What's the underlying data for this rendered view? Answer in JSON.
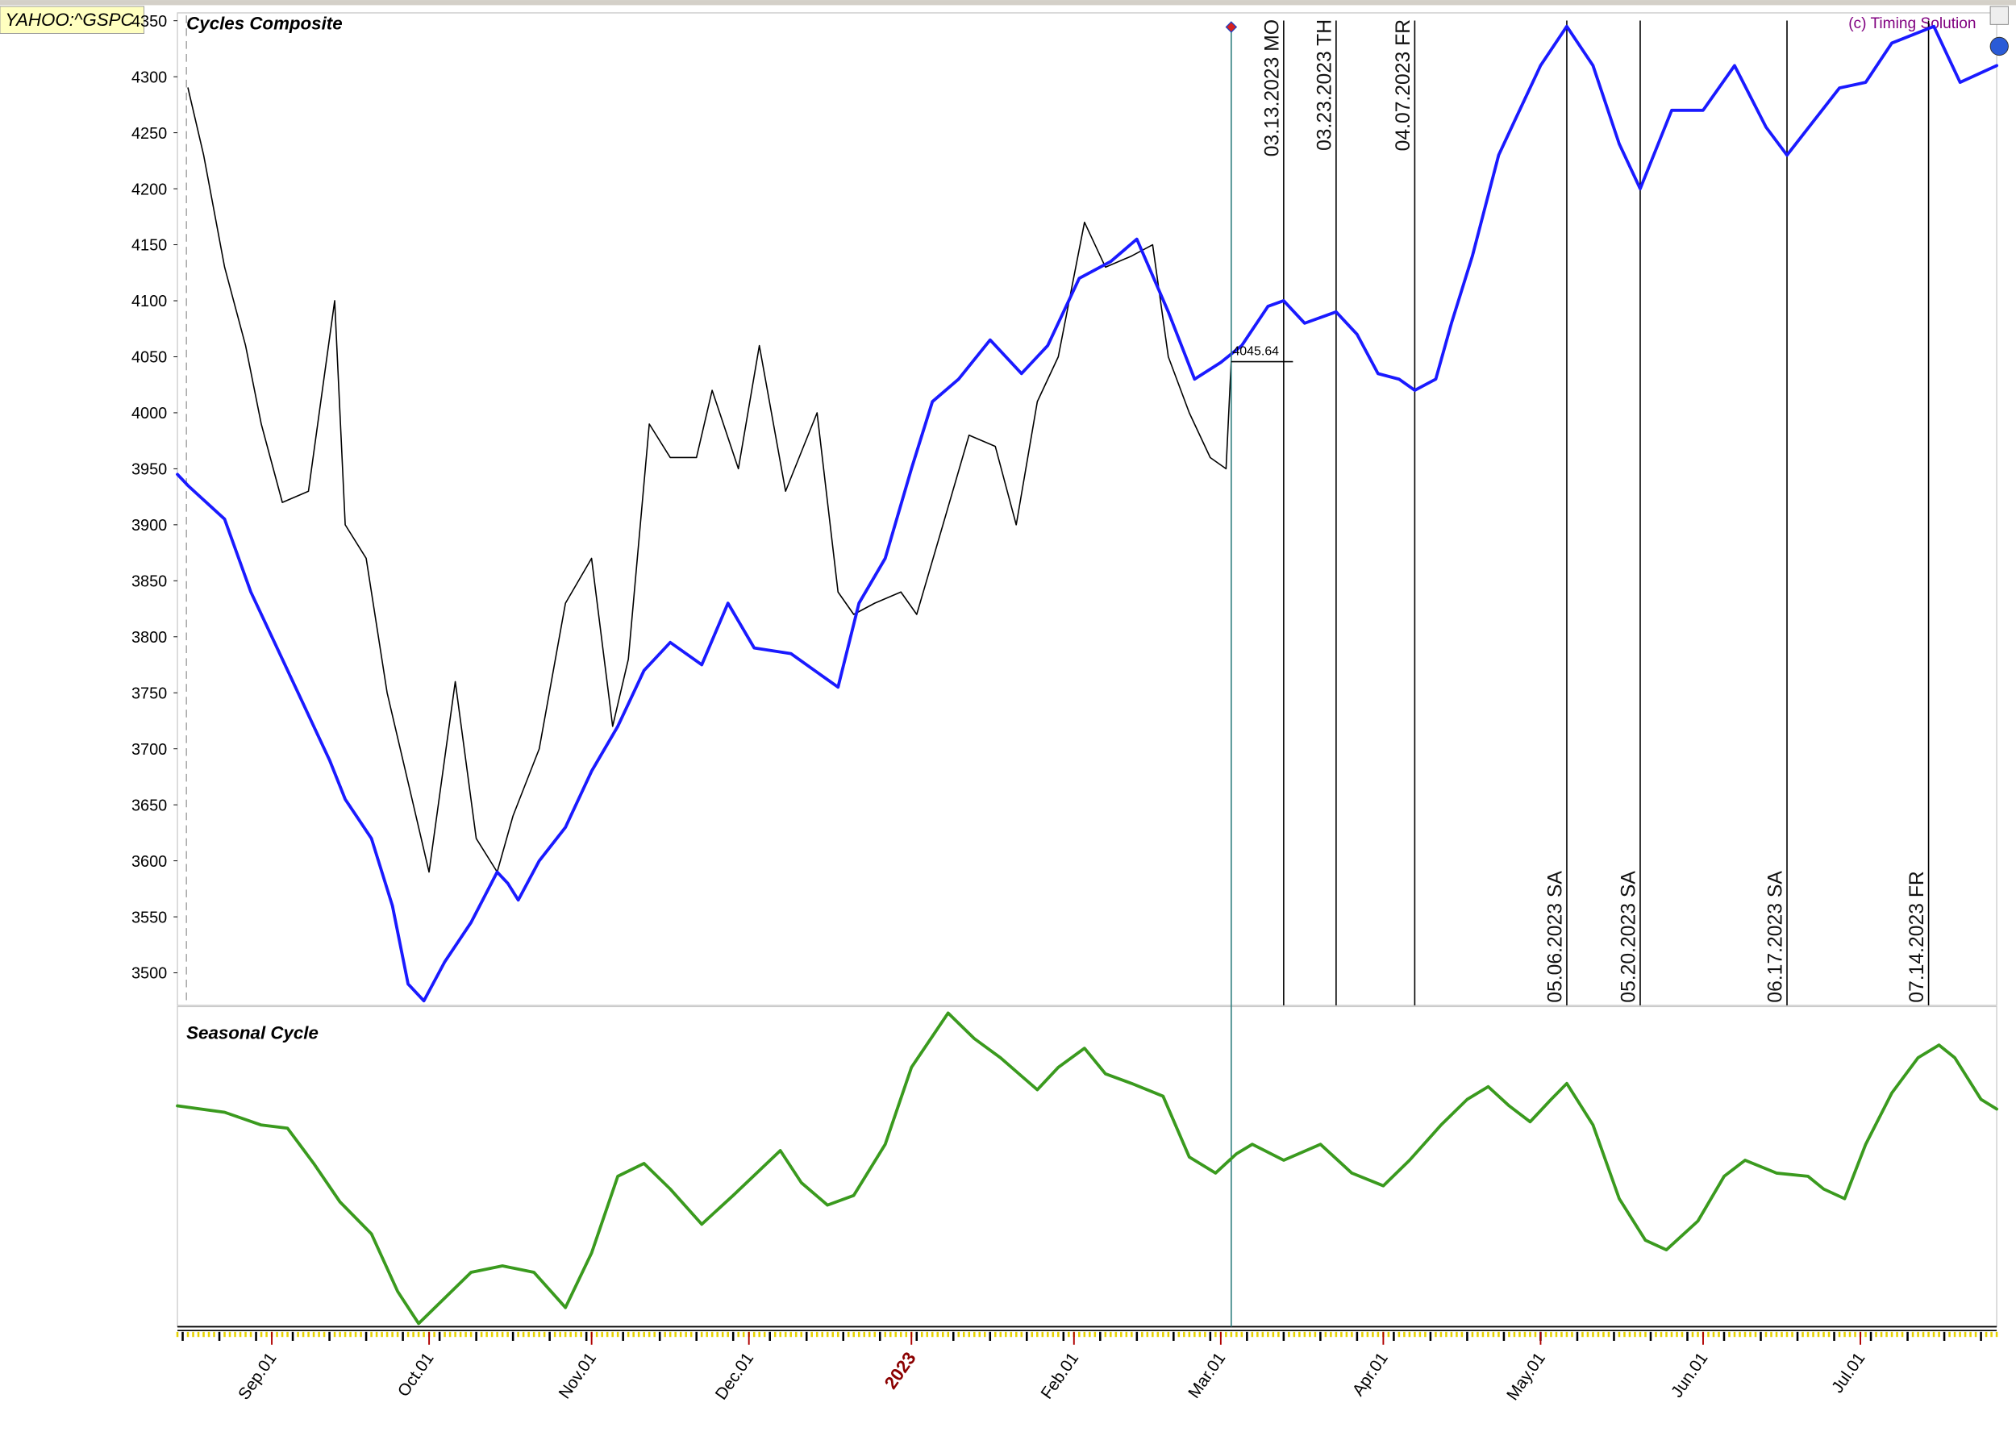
{
  "symbol": "YAHOO:^GSPC",
  "copyright": "(c) Timing Solution",
  "chart_data": [
    {
      "type": "line",
      "title": "Cycles Composite",
      "xlim": [
        "2022-08-14",
        "2023-07-27"
      ],
      "ylim": [
        3471,
        4357
      ],
      "yticks": [
        3500,
        3550,
        3600,
        3650,
        3700,
        3750,
        3800,
        3850,
        3900,
        3950,
        4000,
        4050,
        4100,
        4150,
        4200,
        4250,
        4300,
        4350
      ],
      "series": [
        {
          "color": "#000000",
          "x": [
            "2022-08-16",
            "2022-08-19",
            "2022-08-23",
            "2022-08-27",
            "2022-08-30",
            "2022-09-03",
            "2022-09-08",
            "2022-09-13",
            "2022-09-15",
            "2022-09-19",
            "2022-09-23",
            "2022-09-28",
            "2022-10-01",
            "2022-10-06",
            "2022-10-10",
            "2022-10-14",
            "2022-10-17",
            "2022-10-22",
            "2022-10-27",
            "2022-11-01",
            "2022-11-05",
            "2022-11-08",
            "2022-11-12",
            "2022-11-16",
            "2022-11-21",
            "2022-11-24",
            "2022-11-29",
            "2022-12-03",
            "2022-12-08",
            "2022-12-14",
            "2022-12-18",
            "2022-12-21",
            "2022-12-25",
            "2022-12-30",
            "2023-01-02",
            "2023-01-07",
            "2023-01-12",
            "2023-01-17",
            "2023-01-21",
            "2023-01-25",
            "2023-01-29",
            "2023-02-03",
            "2023-02-07",
            "2023-02-12",
            "2023-02-16",
            "2023-02-19",
            "2023-02-23",
            "2023-02-27",
            "2023-03-02",
            "2023-03-03"
          ],
          "values": [
            4290,
            4230,
            4130,
            4060,
            3990,
            3920,
            3930,
            4100,
            3900,
            3870,
            3750,
            3650,
            3590,
            3760,
            3620,
            3590,
            3640,
            3700,
            3830,
            3870,
            3720,
            3780,
            3990,
            3960,
            3960,
            4020,
            3950,
            4060,
            3930,
            4000,
            3840,
            3820,
            3830,
            3840,
            3820,
            3900,
            3980,
            3970,
            3900,
            4010,
            4050,
            4170,
            4130,
            4140,
            4150,
            4050,
            4000,
            3960,
            3950,
            4045.64
          ]
        },
        {
          "color": "#1a1aff",
          "x": [
            "2022-08-14",
            "2022-08-16",
            "2022-08-23",
            "2022-08-28",
            "2022-09-02",
            "2022-09-07",
            "2022-09-12",
            "2022-09-15",
            "2022-09-20",
            "2022-09-24",
            "2022-09-27",
            "2022-09-30",
            "2022-10-04",
            "2022-10-09",
            "2022-10-14",
            "2022-10-16",
            "2022-10-18",
            "2022-10-22",
            "2022-10-27",
            "2022-11-01",
            "2022-11-06",
            "2022-11-11",
            "2022-11-16",
            "2022-11-22",
            "2022-11-27",
            "2022-12-02",
            "2022-12-09",
            "2022-12-18",
            "2022-12-22",
            "2022-12-27",
            "2023-01-01",
            "2023-01-05",
            "2023-01-10",
            "2023-01-16",
            "2023-01-22",
            "2023-01-27",
            "2023-02-02",
            "2023-02-08",
            "2023-02-13",
            "2023-02-19",
            "2023-02-24",
            "2023-03-01",
            "2023-03-05",
            "2023-03-10",
            "2023-03-13",
            "2023-03-17",
            "2023-03-23",
            "2023-03-27",
            "2023-03-31",
            "2023-04-04",
            "2023-04-07",
            "2023-04-11",
            "2023-04-14",
            "2023-04-18",
            "2023-04-23",
            "2023-04-26",
            "2023-05-01",
            "2023-05-06",
            "2023-05-11",
            "2023-05-16",
            "2023-05-20",
            "2023-05-26",
            "2023-06-01",
            "2023-06-07",
            "2023-06-13",
            "2023-06-17",
            "2023-06-22",
            "2023-06-27",
            "2023-07-02",
            "2023-07-07",
            "2023-07-15",
            "2023-07-20",
            "2023-07-27"
          ],
          "values": [
            3945,
            3935,
            3905,
            3840,
            3790,
            3740,
            3690,
            3655,
            3620,
            3560,
            3490,
            3475,
            3510,
            3545,
            3590,
            3580,
            3565,
            3600,
            3630,
            3680,
            3720,
            3770,
            3795,
            3775,
            3830,
            3790,
            3785,
            3755,
            3830,
            3870,
            3950,
            4010,
            4030,
            4065,
            4035,
            4060,
            4120,
            4135,
            4155,
            4090,
            4030,
            4045,
            4060,
            4095,
            4100,
            4080,
            4090,
            4070,
            4035,
            4030,
            4020,
            4030,
            4080,
            4140,
            4230,
            4260,
            4310,
            4345,
            4310,
            4240,
            4200,
            4270,
            4270,
            4310,
            4255,
            4230,
            4260,
            4290,
            4295,
            4330,
            4345,
            4295,
            4310
          ]
        }
      ],
      "annotations_top": [
        {
          "date": "2023-03-13",
          "label": "03.13.2023 MO"
        },
        {
          "date": "2023-03-23",
          "label": "03.23.2023 TH"
        },
        {
          "date": "2023-04-07",
          "label": "04.07.2023 FR"
        }
      ],
      "annotations_bottom": [
        {
          "date": "2023-05-06",
          "label": "05.06.2023 SA"
        },
        {
          "date": "2023-05-20",
          "label": "05.20.2023 SA"
        },
        {
          "date": "2023-06-17",
          "label": "06.17.2023 SA"
        },
        {
          "date": "2023-07-14",
          "label": "07.14.2023 FR"
        }
      ]
    },
    {
      "type": "line",
      "title": "Seasonal Cycle",
      "xlim": [
        "2022-08-14",
        "2023-07-27"
      ],
      "ylim": [
        0,
        100
      ],
      "xticks": [
        {
          "value": "2022-09-01",
          "label": "Sep.01"
        },
        {
          "value": "2022-10-01",
          "label": "Oct.01"
        },
        {
          "value": "2022-11-01",
          "label": "Nov.01"
        },
        {
          "value": "2022-12-01",
          "label": "Dec.01"
        },
        {
          "value": "2023-01-01",
          "label": "2023"
        },
        {
          "value": "2023-02-01",
          "label": "Feb.01"
        },
        {
          "value": "2023-03-01",
          "label": "Mar.01"
        },
        {
          "value": "2023-04-01",
          "label": "Apr.01"
        },
        {
          "value": "2023-05-01",
          "label": "May.01"
        },
        {
          "value": "2023-06-01",
          "label": "Jun.01"
        },
        {
          "value": "2023-07-01",
          "label": "Jul.01"
        }
      ],
      "series": [
        {
          "color": "#3a9a1e",
          "x": [
            "2022-08-14",
            "2022-08-23",
            "2022-08-30",
            "2022-09-04",
            "2022-09-09",
            "2022-09-14",
            "2022-09-20",
            "2022-09-25",
            "2022-09-29",
            "2022-10-04",
            "2022-10-09",
            "2022-10-15",
            "2022-10-21",
            "2022-10-27",
            "2022-11-01",
            "2022-11-06",
            "2022-11-11",
            "2022-11-16",
            "2022-11-22",
            "2022-11-28",
            "2022-12-07",
            "2022-12-11",
            "2022-12-16",
            "2022-12-21",
            "2022-12-27",
            "2023-01-01",
            "2023-01-08",
            "2023-01-13",
            "2023-01-18",
            "2023-01-25",
            "2023-01-29",
            "2023-02-03",
            "2023-02-07",
            "2023-02-12",
            "2023-02-18",
            "2023-02-23",
            "2023-02-28",
            "2023-03-04",
            "2023-03-07",
            "2023-03-13",
            "2023-03-20",
            "2023-03-26",
            "2023-04-01",
            "2023-04-06",
            "2023-04-12",
            "2023-04-17",
            "2023-04-21",
            "2023-04-25",
            "2023-04-29",
            "2023-05-03",
            "2023-05-06",
            "2023-05-11",
            "2023-05-16",
            "2023-05-21",
            "2023-05-25",
            "2023-05-31",
            "2023-06-05",
            "2023-06-09",
            "2023-06-15",
            "2023-06-21",
            "2023-06-24",
            "2023-06-28",
            "2023-07-02",
            "2023-07-07",
            "2023-07-12",
            "2023-07-16",
            "2023-07-19",
            "2023-07-24",
            "2023-07-27"
          ],
          "values": [
            69,
            67,
            63,
            62,
            51,
            39,
            29,
            11,
            1,
            9,
            17,
            19,
            17,
            6,
            23,
            47,
            51,
            43,
            32,
            41,
            55,
            45,
            38,
            41,
            57,
            81,
            98,
            90,
            84,
            74,
            81,
            87,
            79,
            76,
            72,
            53,
            48,
            54,
            57,
            52,
            57,
            48,
            44,
            52,
            63,
            71,
            75,
            69,
            64,
            71,
            76,
            63,
            40,
            27,
            24,
            33,
            47,
            52,
            48,
            47,
            43,
            40,
            57,
            73,
            84,
            88,
            84,
            71,
            68
          ]
        }
      ]
    }
  ]
}
